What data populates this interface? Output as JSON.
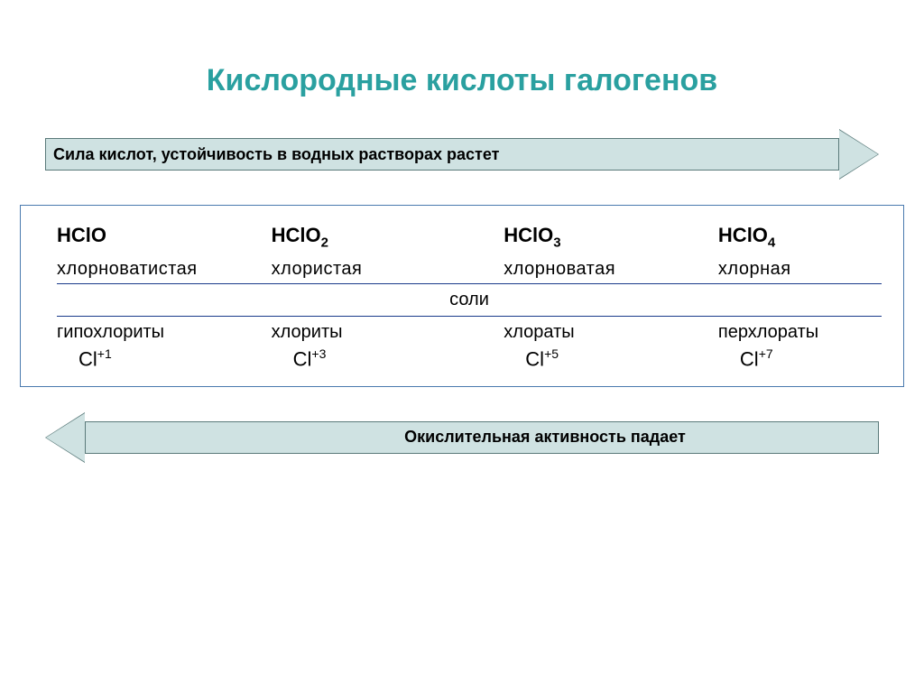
{
  "title": "Кислородные кислоты галогенов",
  "title_color": "#2aa0a0",
  "arrow": {
    "top_text": "Сила кислот, устойчивость в водных растворах растет",
    "bottom_text": "Окислительная активность падает",
    "fill_color": "#cfe2e2",
    "border_color": "#5a7a7a"
  },
  "box": {
    "border_color": "#4a7aaf",
    "line_color": "#1a3a8a",
    "salts_label": "соли",
    "columns": [
      {
        "formula_base": "HClO",
        "formula_sub": "",
        "acid_name": "хлорноватистая",
        "salt_name": "гипохлориты",
        "element": "Cl",
        "charge": "+1"
      },
      {
        "formula_base": "HClO",
        "formula_sub": "2",
        "acid_name": "хлористая",
        "salt_name": "хлориты",
        "element": "Cl",
        "charge": "+3"
      },
      {
        "formula_base": "HClO",
        "formula_sub": "3",
        "acid_name": "хлорноватая",
        "salt_name": "хлораты",
        "element": "Cl",
        "charge": "+5"
      },
      {
        "formula_base": "HClO",
        "formula_sub": "4",
        "acid_name": "хлорная",
        "salt_name": "перхлораты",
        "element": "Cl",
        "charge": "+7"
      }
    ]
  }
}
